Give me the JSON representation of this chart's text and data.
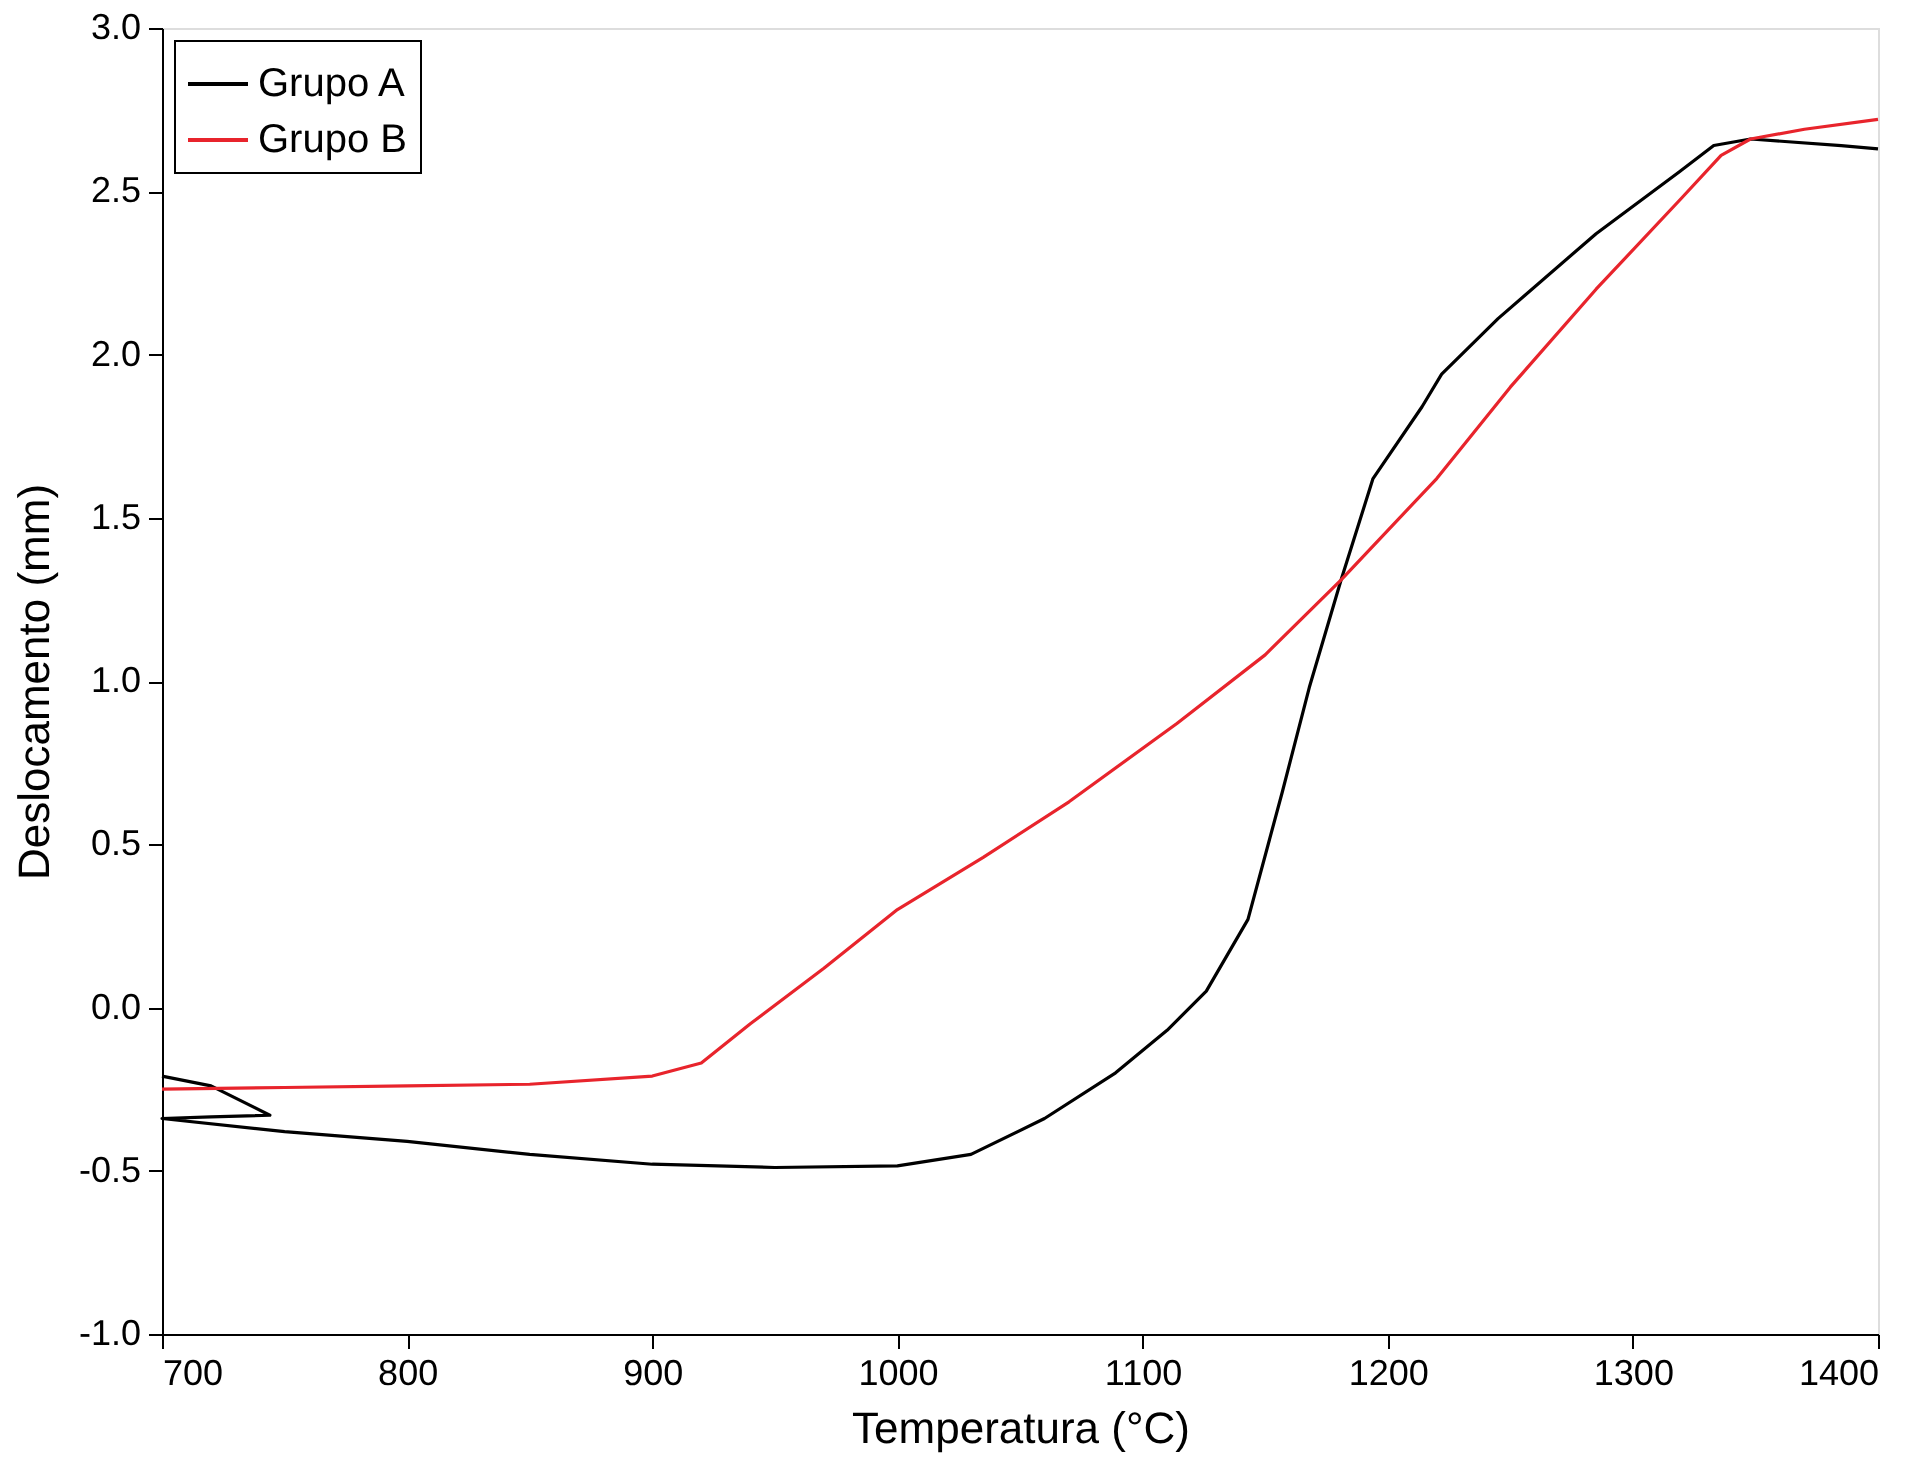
{
  "chart_data": {
    "type": "line",
    "xlabel": "Temperatura (°C)",
    "ylabel": "Deslocamento (mm)",
    "xlim": [
      700,
      1400
    ],
    "xticks": [
      700,
      800,
      900,
      1000,
      1100,
      1200,
      1300,
      1400
    ],
    "ylim": [
      -1.0,
      3.0
    ],
    "yticks": [
      {
        "value": -1.0,
        "label": "-1.0"
      },
      {
        "value": -0.5,
        "label": "-0.5"
      },
      {
        "value": 0,
        "label": "0.0"
      },
      {
        "value": 0.5,
        "label": "0.5"
      },
      {
        "value": 1.0,
        "label": "1.0"
      },
      {
        "value": 1.5,
        "label": "1.5"
      },
      {
        "value": 2.0,
        "label": "2.0"
      },
      {
        "value": 2.5,
        "label": "2.5"
      },
      {
        "value": 3.0,
        "label": "3.0"
      }
    ],
    "grid": false,
    "legend": "top left",
    "marker": "none",
    "line_style": "solid",
    "series": [
      {
        "name": "Grupo A",
        "color": "#000000",
        "x": [
          700,
          720,
          744,
          720,
          700,
          750,
          800,
          850,
          900,
          950,
          1000,
          1030,
          1060,
          1089,
          1110,
          1126,
          1143,
          1157,
          1168,
          1181,
          1194,
          1214,
          1222,
          1245,
          1285,
          1319,
          1333,
          1348,
          1385,
          1400
        ],
        "values": [
          -0.21,
          -0.24,
          -0.33,
          -0.335,
          -0.34,
          -0.38,
          -0.41,
          -0.45,
          -0.48,
          -0.49,
          -0.485,
          -0.45,
          -0.34,
          -0.2,
          -0.07,
          0.05,
          0.27,
          0.66,
          0.98,
          1.31,
          1.62,
          1.84,
          1.94,
          2.11,
          2.37,
          2.56,
          2.64,
          2.66,
          2.64,
          2.63
        ]
      },
      {
        "name": "Grupo B",
        "color": "#e8242c",
        "x": [
          700,
          750,
          800,
          850,
          900,
          920,
          940,
          970,
          1000,
          1035,
          1070,
          1114,
          1150,
          1181,
          1220,
          1250,
          1285,
          1320,
          1336,
          1348,
          1370,
          1400
        ],
        "values": [
          -0.25,
          -0.245,
          -0.24,
          -0.235,
          -0.21,
          -0.17,
          -0.05,
          0.12,
          0.3,
          0.46,
          0.63,
          0.87,
          1.08,
          1.31,
          1.62,
          1.9,
          2.2,
          2.48,
          2.61,
          2.66,
          2.69,
          2.72
        ]
      }
    ]
  }
}
